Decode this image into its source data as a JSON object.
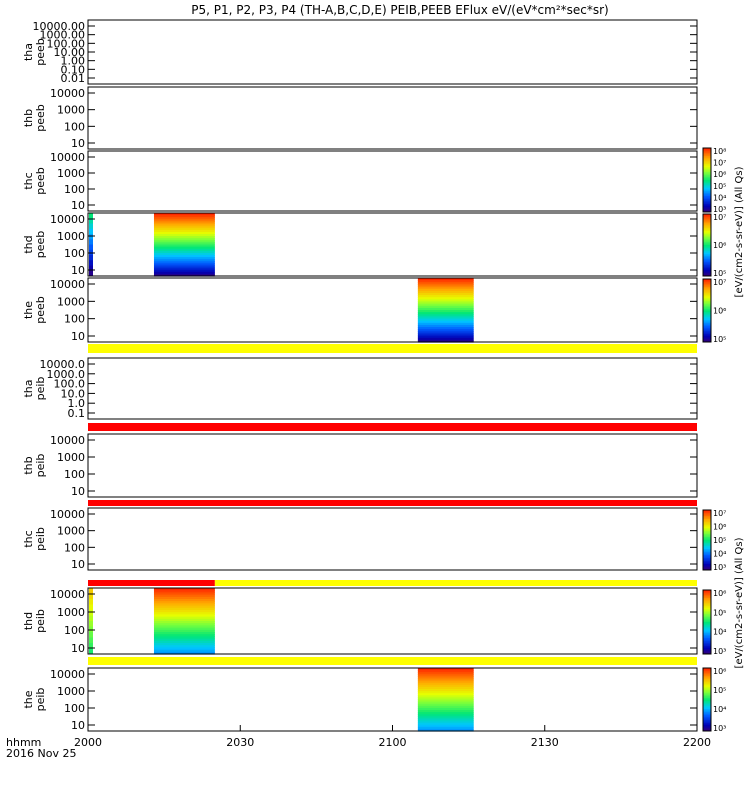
{
  "chart_data": {
    "type": "heatmap",
    "title": "P5, P1, P2, P3, P4 (TH-A,B,C,D,E) PEIB,PEEB EFlux eV/(eV*cm²*sec*sr)",
    "x_label_line1": "hhmm",
    "x_label_line2": "2016 Nov 25",
    "x_ticks": [
      "2000",
      "2030",
      "2100",
      "2130",
      "2200"
    ],
    "x_range_min": [
      1200,
      1320
    ],
    "colorbar_labels": {
      "electron": "[eV/(cm2-s-sr-eV)] (All Qs)",
      "ion": "[eV/(cm2-s-sr-eV)] (All Qs)"
    },
    "colorbar_ticks": {
      "eeb_top": [
        "10⁸",
        "10⁷",
        "10⁶",
        "10⁵",
        "10⁴",
        "10³"
      ],
      "eeb_mid": [
        "10⁷",
        "10⁶",
        "10⁵"
      ],
      "eeb_low": [
        "10⁷",
        "10⁶",
        "10⁵"
      ],
      "eib_mid": [
        "10⁷",
        "10⁶",
        "10⁵",
        "10⁴",
        "10³"
      ],
      "eib_low": [
        "10⁶",
        "10⁵",
        "10⁴",
        "10³"
      ],
      "eib_bottom": [
        "10⁶",
        "10⁵",
        "10⁴",
        "10³"
      ]
    },
    "panels": [
      {
        "label1": "tha",
        "label2": "peeb",
        "yticks": [
          "10000.00",
          "1000.00",
          "100.00",
          "10.00",
          "1.00",
          "0.10",
          "0.01"
        ],
        "data": []
      },
      {
        "label1": "thb",
        "label2": "peeb",
        "yticks": [
          "10000",
          "1000",
          "100",
          "10"
        ],
        "data": []
      },
      {
        "label1": "thc",
        "label2": "peeb",
        "yticks": [
          "10000",
          "1000",
          "100",
          "10"
        ],
        "data": []
      },
      {
        "label1": "thd",
        "label2": "peeb",
        "yticks": [
          "10000",
          "1000",
          "100",
          "10"
        ],
        "data": [
          {
            "t_start": 1213,
            "t_end": 1225,
            "kind": "electron"
          }
        ]
      },
      {
        "label1": "the",
        "label2": "peeb",
        "yticks": [
          "10000",
          "1000",
          "100",
          "10"
        ],
        "data": [
          {
            "t_start": 1265,
            "t_end": 1276,
            "kind": "electron"
          }
        ]
      },
      {
        "label1": "tha",
        "label2": "peib",
        "yticks": [
          "10000.0",
          "1000.0",
          "100.0",
          "10.0",
          "1.0",
          "0.1"
        ],
        "data": []
      },
      {
        "label1": "thb",
        "label2": "peib",
        "yticks": [
          "10000",
          "1000",
          "100",
          "10"
        ],
        "data": []
      },
      {
        "label1": "thc",
        "label2": "peib",
        "yticks": [
          "10000",
          "1000",
          "100",
          "10"
        ],
        "data": []
      },
      {
        "label1": "thd",
        "label2": "peib",
        "yticks": [
          "10000",
          "1000",
          "100",
          "10"
        ],
        "data": [
          {
            "t_start": 1213,
            "t_end": 1225,
            "kind": "ion"
          }
        ]
      },
      {
        "label1": "the",
        "label2": "peib",
        "yticks": [
          "10000",
          "1000",
          "100",
          "10"
        ],
        "data": [
          {
            "t_start": 1265,
            "t_end": 1276,
            "kind": "ion"
          }
        ]
      }
    ],
    "status_bars": [
      {
        "color": "#ffff00",
        "t_start": 1200,
        "t_end": 1320
      },
      {
        "color": "#ff0000",
        "t_start": 1200,
        "t_end": 1320
      },
      {
        "color": "#ff0000",
        "t_start": 1200,
        "t_end": 1320
      },
      {
        "color": "#ff0000",
        "t_start": 1200,
        "t_end": 1225,
        "color2": "#ffff00"
      },
      {
        "color": "#ffff00",
        "t_start": 1200,
        "t_end": 1320
      }
    ]
  }
}
